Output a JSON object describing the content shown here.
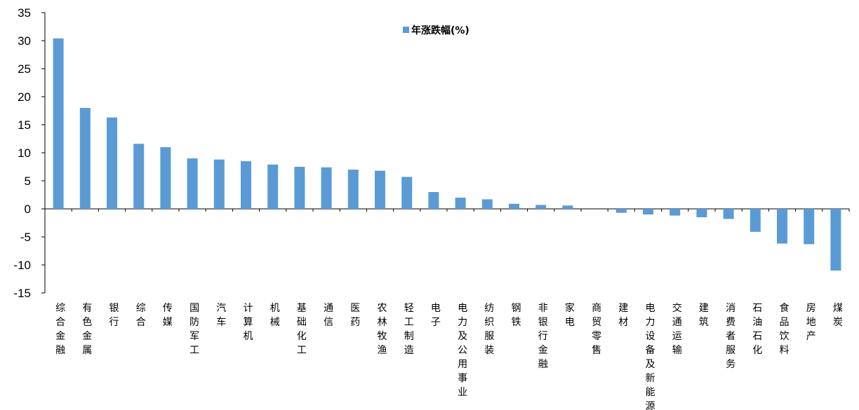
{
  "chart_data": {
    "type": "bar",
    "title": "",
    "xlabel": "",
    "ylabel": "",
    "ylim": [
      -15,
      35
    ],
    "yticks": [
      35,
      30,
      25,
      20,
      15,
      10,
      5,
      0,
      -5,
      -10,
      -15
    ],
    "grid": false,
    "legend_position": "top-center",
    "bar_color": "#5B9BD5",
    "categories": [
      "综合金融",
      "有色金属",
      "银行",
      "综合",
      "传媒",
      "国防军工",
      "汽车",
      "计算机",
      "机械",
      "基础化工",
      "通信",
      "医药",
      "农林牧渔",
      "轻工制造",
      "电子",
      "电力及公用事业",
      "纺织服装",
      "钢铁",
      "非银行金融",
      "家电",
      "商贸零售",
      "建材",
      "电力设备及新能源",
      "交通运输",
      "建筑",
      "消费者服务",
      "石油石化",
      "食品饮料",
      "房地产",
      "煤炭"
    ],
    "series": [
      {
        "name": "年涨跌幅(%)",
        "values": [
          30.4,
          18.0,
          16.3,
          11.6,
          11.0,
          9.0,
          8.8,
          8.5,
          7.9,
          7.5,
          7.4,
          7.0,
          6.8,
          5.7,
          3.0,
          2.0,
          1.7,
          0.9,
          0.7,
          0.6,
          0.0,
          -0.7,
          -1.0,
          -1.2,
          -1.5,
          -1.8,
          -4.1,
          -6.2,
          -6.3,
          -11.0
        ]
      }
    ]
  }
}
